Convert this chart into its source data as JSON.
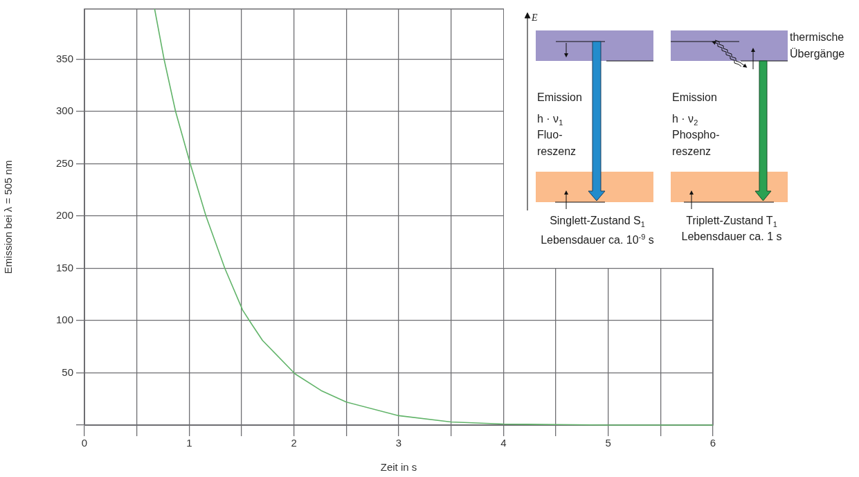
{
  "chart_data": {
    "type": "line",
    "xlabel": "Zeit in s",
    "ylabel": "Emission bei λ = 505 nm",
    "x": [
      0.67,
      0.76,
      0.87,
      1.01,
      1.16,
      1.34,
      1.51,
      1.6,
      1.7,
      2.01,
      2.26,
      2.5,
      3,
      3.5,
      4,
      4.5,
      5,
      6
    ],
    "series": [
      {
        "color": "#62b46a",
        "values": [
          398,
          350,
          300,
          250,
          200,
          150,
          110,
          96,
          81,
          49,
          33,
          22,
          9,
          3,
          1,
          0.5,
          0,
          0
        ]
      }
    ],
    "xlim": [
      0,
      6
    ],
    "xticks": [
      0,
      {
        "value": 0.5,
        "label": null
      },
      1,
      {
        "value": 1.5,
        "label": null
      },
      2,
      {
        "value": 2.5,
        "label": null
      },
      3,
      {
        "value": 3.5,
        "label": null
      },
      4,
      {
        "value": 4.5,
        "label": null
      },
      5,
      {
        "value": 5.5,
        "label": null
      },
      6
    ],
    "ylim": [
      0,
      398
    ],
    "yticks": [
      {
        "value": 0,
        "label": null
      },
      50,
      100,
      150,
      200,
      250,
      300,
      350
    ],
    "grid": true,
    "legend": false,
    "marker": "none",
    "line_style": "solid",
    "annotations": [
      "E",
      "thermische\nÜbergänge",
      "Emission",
      "h · ν$_{1}$",
      "Fluo-\nreszenz",
      "Singlett-Zustand S$_{1}$",
      "Lebensdauer ca. 10$^{-9}$ s",
      "Emission",
      "h · ν$_{2}$",
      "Phospho-\nreszenz",
      "Triplett-Zustand T$_{1}$",
      "Lebensdauer ca. 1 s"
    ]
  }
}
